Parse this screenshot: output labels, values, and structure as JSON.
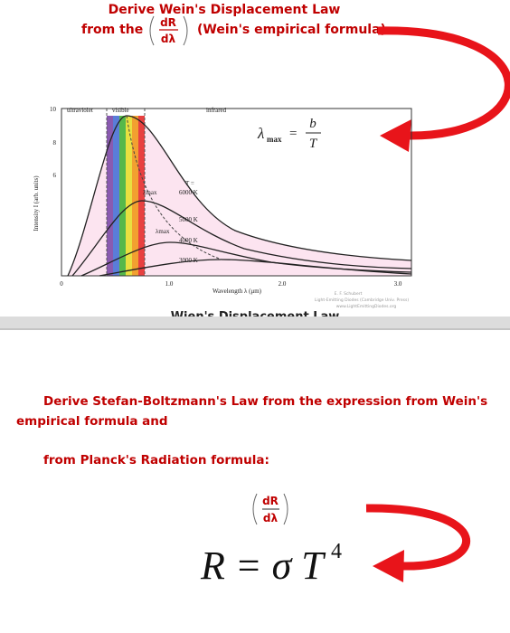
{
  "top": {
    "title": "Derive Wein's Displacement Law",
    "from": "from the",
    "derivative": {
      "num": "dR",
      "den": "dλ"
    },
    "note": "(Wein's empirical formula)"
  },
  "figure": {
    "regions": [
      "ultraviolet",
      "visible",
      "infrared"
    ],
    "y_label": "Intensity I (arb. units)",
    "x_label": "Wavelength λ (μm)",
    "y_ticks": [
      "10",
      "8",
      "6"
    ],
    "x_ticks": [
      "0",
      "1.0",
      "2.0",
      "3.0"
    ],
    "t_label": "T =",
    "curves": [
      "6000 K",
      "5000 K",
      "4000 K",
      "3000 K"
    ],
    "peak_labels": [
      "λmax",
      "λmax"
    ],
    "formula": {
      "lambda": "λ",
      "sub": "max",
      "eq": "=",
      "num": "b",
      "den": "T"
    },
    "credits": [
      "E. F. Schubert",
      "Light-Emitting Diodes (Cambridge Univ. Press)",
      "www.LightEmittingDiodes.org"
    ],
    "caption": "Wien's Displacement Law"
  },
  "bottom": {
    "line1": "Derive Stefan-Boltzmann's  Law from the expression from Wein's",
    "line2": "empirical formula and",
    "line3": "from Planck's Radiation  formula:",
    "derivative": {
      "num": "dR",
      "den": "dλ"
    },
    "formula": "R = σ T",
    "exponent": "4"
  }
}
